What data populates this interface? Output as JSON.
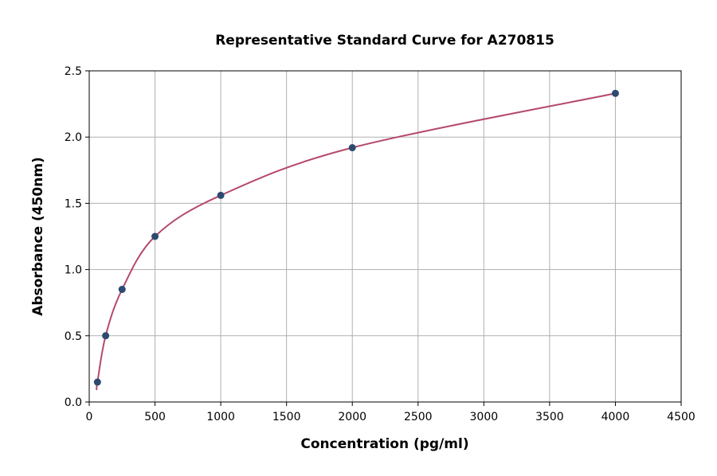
{
  "chart_data": {
    "type": "scatter",
    "title": "Representative Standard Curve for A270815",
    "xlabel": "Concentration (pg/ml)",
    "ylabel": "Absorbance (450nm)",
    "xlim": [
      0,
      4500
    ],
    "ylim": [
      0,
      2.5
    ],
    "xticks": [
      0,
      500,
      1000,
      1500,
      2000,
      2500,
      3000,
      3500,
      4000,
      4500
    ],
    "yticks": [
      "0.0",
      "0.5",
      "1.0",
      "1.5",
      "2.0",
      "2.5"
    ],
    "grid": true,
    "series": [
      {
        "x": [
          62.5,
          125,
          250,
          500,
          1000,
          2000,
          4000
        ],
        "y": [
          0.15,
          0.5,
          0.85,
          1.25,
          1.56,
          1.92,
          2.33
        ],
        "marker_color": "#2d4a70",
        "curve_color": "#b5496c",
        "fit": "smooth curve"
      }
    ]
  }
}
